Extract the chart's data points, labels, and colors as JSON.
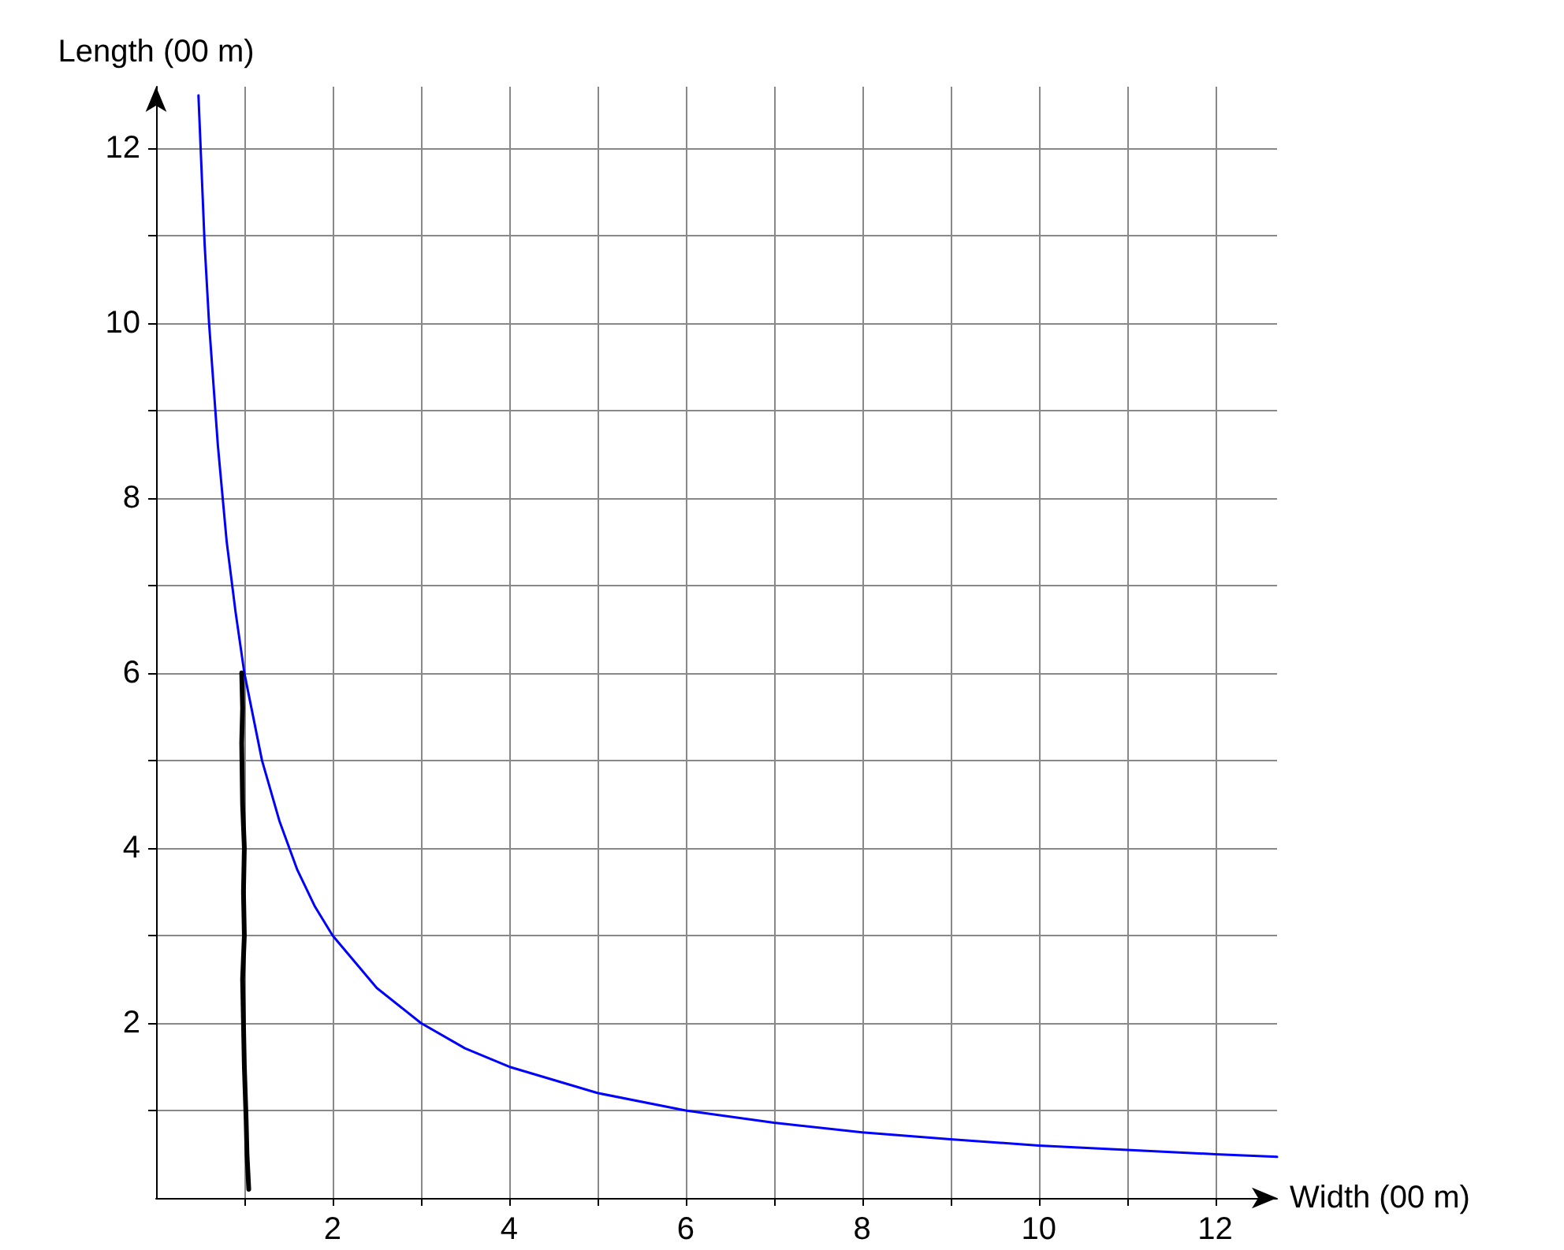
{
  "chart_data": {
    "type": "line",
    "xlabel": "Width (00 m)",
    "ylabel": "Length (00 m)",
    "xlim": [
      0,
      12.7
    ],
    "ylim": [
      0,
      12.7
    ],
    "xticks": [
      {
        "value": 1,
        "label": null
      },
      2,
      {
        "value": 3,
        "label": null
      },
      4,
      {
        "value": 5,
        "label": null
      },
      6,
      {
        "value": 7,
        "label": null
      },
      8,
      {
        "value": 9,
        "label": null
      },
      10,
      {
        "value": 11,
        "label": null
      },
      12
    ],
    "yticks": [
      {
        "value": 1,
        "label": null
      },
      2,
      {
        "value": 3,
        "label": null
      },
      4,
      {
        "value": 5,
        "label": null
      },
      6,
      {
        "value": 7,
        "label": null
      },
      8,
      {
        "value": 9,
        "label": null
      },
      10,
      {
        "value": 11,
        "label": null
      },
      12
    ],
    "grid": true,
    "marker": "none",
    "line_style": "solid",
    "series": [
      {
        "color": "#0000ff",
        "x": [
          0.48,
          0.55,
          0.6,
          0.7,
          0.8,
          0.9,
          1,
          1.2,
          1.4,
          1.6,
          1.8,
          2,
          2.5,
          3,
          3.5,
          4,
          5,
          6,
          7,
          8,
          9,
          10,
          11,
          12,
          12.7
        ],
        "values": [
          12.6,
          10.9,
          10,
          8.6,
          7.5,
          6.7,
          6,
          5,
          4.3,
          3.75,
          3.33,
          3,
          2.4,
          2,
          1.71,
          1.5,
          1.2,
          1,
          0.86,
          0.75,
          0.67,
          0.6,
          0.55,
          0.5,
          0.47
        ]
      },
      {
        "color": "#000000",
        "x": [
          1.05,
          1.03,
          1.02,
          1,
          0.99,
          0.98,
          1,
          0.99,
          1,
          0.98,
          0.97,
          0.98,
          0.97
        ],
        "values": [
          0.1,
          0.5,
          0.9,
          1.5,
          2,
          2.5,
          3,
          3.5,
          4,
          4.5,
          5.2,
          5.6,
          6
        ]
      }
    ]
  }
}
